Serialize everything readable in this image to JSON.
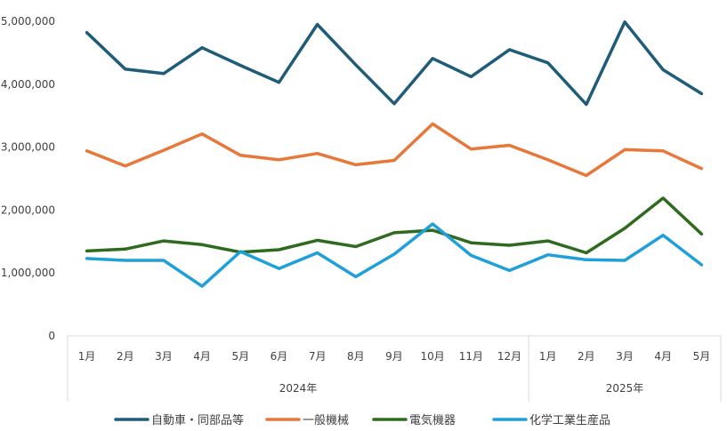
{
  "chart_data": {
    "type": "line",
    "title": "",
    "xlabel": "",
    "ylabel": "",
    "ylim": [
      0,
      5000000
    ],
    "yticks": [
      0,
      1000000,
      2000000,
      3000000,
      4000000,
      5000000
    ],
    "ytick_labels": [
      "0",
      "1,000,000",
      "2,000,000",
      "3,000,000",
      "4,000,000",
      "5,000,000"
    ],
    "categories": [
      "1月",
      "2月",
      "3月",
      "4月",
      "5月",
      "6月",
      "7月",
      "8月",
      "9月",
      "10月",
      "11月",
      "12月",
      "1月",
      "2月",
      "3月",
      "4月",
      "5月"
    ],
    "groups": [
      {
        "label": "2024年",
        "count": 12
      },
      {
        "label": "2025年",
        "count": 5
      }
    ],
    "grid": false,
    "legend": "bottom",
    "series": [
      {
        "name": "自動車・同部品等",
        "color": "#1F5C7A",
        "values": [
          4820000,
          4240000,
          4170000,
          4580000,
          4300000,
          4030000,
          4950000,
          4310000,
          3690000,
          4410000,
          4120000,
          4550000,
          4340000,
          3680000,
          4990000,
          4230000,
          3850000
        ]
      },
      {
        "name": "一般機械",
        "color": "#E8773A",
        "values": [
          2940000,
          2700000,
          2950000,
          3210000,
          2870000,
          2800000,
          2900000,
          2720000,
          2790000,
          3370000,
          2970000,
          3030000,
          2800000,
          2550000,
          2960000,
          2940000,
          2660000
        ]
      },
      {
        "name": "電気機器",
        "color": "#2E6B1E",
        "values": [
          1350000,
          1380000,
          1510000,
          1450000,
          1330000,
          1370000,
          1520000,
          1420000,
          1640000,
          1680000,
          1480000,
          1440000,
          1510000,
          1320000,
          1710000,
          2190000,
          1620000
        ]
      },
      {
        "name": "化学工業生産品",
        "color": "#1FA0D8",
        "values": [
          1230000,
          1200000,
          1200000,
          790000,
          1340000,
          1070000,
          1320000,
          940000,
          1300000,
          1780000,
          1280000,
          1040000,
          1290000,
          1210000,
          1200000,
          1600000,
          1130000
        ]
      }
    ]
  }
}
